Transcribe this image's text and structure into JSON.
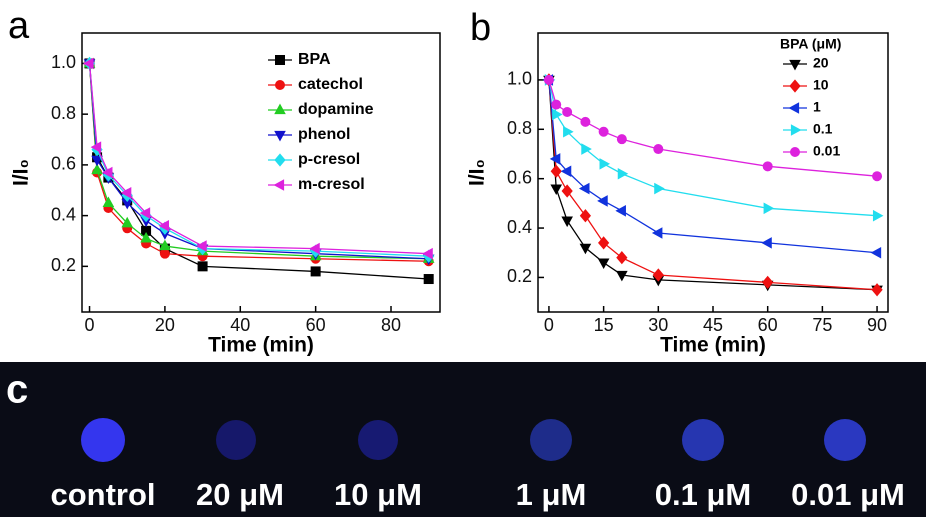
{
  "chart_data": [
    {
      "type": "line",
      "panel_label": "a",
      "x_label": "Time (min)",
      "y_label": "I/I₀",
      "x": [
        0,
        2,
        5,
        10,
        15,
        20,
        30,
        60,
        90
      ],
      "xlim": [
        -2,
        93
      ],
      "xticks": [
        0,
        20,
        40,
        60,
        80
      ],
      "ylim": [
        0.02,
        1.12
      ],
      "yticks": [
        0.2,
        0.4,
        0.6,
        0.8,
        {
          "value": 1,
          "label": "1.0"
        }
      ],
      "legend": "upper-right",
      "series": [
        {
          "name": "BPA",
          "color": "#000000",
          "marker": "square",
          "values": [
            1.0,
            0.63,
            0.55,
            0.46,
            0.34,
            0.27,
            0.2,
            0.18,
            0.15
          ]
        },
        {
          "name": "catechol",
          "color": "#ee1111",
          "marker": "circle",
          "values": [
            1.0,
            0.57,
            0.43,
            0.35,
            0.29,
            0.25,
            0.24,
            0.23,
            0.22
          ]
        },
        {
          "name": "dopamine",
          "color": "#22cc22",
          "marker": "triangle-up",
          "values": [
            1.0,
            0.58,
            0.45,
            0.37,
            0.31,
            0.28,
            0.26,
            0.24,
            0.23
          ]
        },
        {
          "name": "phenol",
          "color": "#1111cc",
          "marker": "triangle-down",
          "values": [
            1.0,
            0.62,
            0.55,
            0.45,
            0.38,
            0.33,
            0.27,
            0.25,
            0.23
          ]
        },
        {
          "name": "p-cresol",
          "color": "#22ddee",
          "marker": "diamond",
          "values": [
            1.0,
            0.66,
            0.56,
            0.48,
            0.4,
            0.35,
            0.27,
            0.26,
            0.24
          ]
        },
        {
          "name": "m-cresol",
          "color": "#dd22dd",
          "marker": "triangle-left",
          "values": [
            1.0,
            0.67,
            0.57,
            0.49,
            0.41,
            0.36,
            0.28,
            0.27,
            0.25
          ]
        }
      ]
    },
    {
      "type": "line",
      "panel_label": "b",
      "x_label": "Time (min)",
      "y_label": "I/I₀",
      "legend_title": "BPA (μM)",
      "x": [
        0,
        2,
        5,
        10,
        15,
        20,
        30,
        60,
        90
      ],
      "xlim": [
        -3,
        93
      ],
      "xticks": [
        0,
        15,
        30,
        45,
        60,
        75,
        90
      ],
      "ylim": [
        0.06,
        1.19
      ],
      "yticks": [
        0.2,
        0.4,
        0.6,
        0.8,
        {
          "value": 1,
          "label": "1.0"
        }
      ],
      "legend": "upper-right",
      "series": [
        {
          "name": "20",
          "color": "#000000",
          "marker": "triangle-down",
          "values": [
            1.0,
            0.56,
            0.43,
            0.32,
            0.26,
            0.21,
            0.19,
            0.17,
            0.15
          ]
        },
        {
          "name": "10",
          "color": "#ee1111",
          "marker": "diamond",
          "values": [
            1.0,
            0.63,
            0.55,
            0.45,
            0.34,
            0.28,
            0.21,
            0.18,
            0.15
          ]
        },
        {
          "name": "1",
          "color": "#1133dd",
          "marker": "triangle-left",
          "values": [
            1.0,
            0.68,
            0.63,
            0.56,
            0.51,
            0.47,
            0.38,
            0.34,
            0.3
          ]
        },
        {
          "name": "0.1",
          "color": "#22ddee",
          "marker": "triangle-right",
          "values": [
            1.0,
            0.86,
            0.79,
            0.72,
            0.66,
            0.62,
            0.56,
            0.48,
            0.45
          ]
        },
        {
          "name": "0.01",
          "color": "#dd22dd",
          "marker": "circle",
          "values": [
            1.0,
            0.9,
            0.87,
            0.83,
            0.79,
            0.76,
            0.72,
            0.65,
            0.61
          ]
        }
      ]
    }
  ],
  "photo_panel": {
    "panel_label": "c",
    "samples": [
      "control",
      "20 μM",
      "10 μM",
      "1 μM",
      "0.1 μM",
      "0.01 μM"
    ]
  }
}
